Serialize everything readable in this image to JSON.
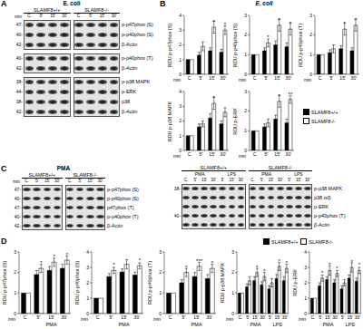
{
  "panel_titles": {
    "B": "E. coli"
  },
  "panel_labels": [
    "A",
    "B",
    "C",
    "D"
  ],
  "blots": [
    {
      "panel": "A",
      "title": "E. coli",
      "x_label": "min",
      "groups": [
        {
          "label": "SLAMF8+/+",
          "conditions": [
            {
              "lanes": [
                "C.",
                "5'",
                "15'",
                "30'"
              ]
            }
          ]
        },
        {
          "label": "SLAMF8-/-",
          "conditions": [
            {
              "lanes": [
                "C.",
                "5'",
                "15'",
                "30'"
              ]
            }
          ]
        }
      ],
      "boxes": [
        [
          {
            "mw": "47-",
            "name": "p-p47phox (S)"
          },
          {
            "mw": "40-",
            "name": "p-p40phox (S)"
          },
          {
            "mw": "42-",
            "name": "β-Actin"
          }
        ],
        [
          {
            "mw": "40-",
            "name": "p-p40phox (T)"
          },
          {
            "mw": "42-",
            "name": "β-Actin"
          }
        ],
        [
          {
            "mw": "38-",
            "name": "p-p38 MAPK"
          },
          {
            "mw": "44-",
            "name": "p-ERK"
          },
          {
            "mw": "38-",
            "name": "p38"
          },
          {
            "mw": "42-",
            "name": "β-Actin"
          }
        ]
      ]
    },
    {
      "panel": "C",
      "title": "PMA",
      "x_label": "min",
      "groups": [
        {
          "label": "SLAMF8+/+",
          "conditions": [
            {
              "lanes": [
                "C.",
                "5'",
                "15'",
                "30'"
              ]
            }
          ]
        },
        {
          "label": "SLAMF8-/-",
          "conditions": [
            {
              "lanes": [
                "C.",
                "5'",
                "15'",
                "30'"
              ]
            }
          ]
        }
      ],
      "boxes": [
        [
          {
            "mw": "47-",
            "name": "p-p47phox (S)"
          },
          {
            "mw": "40-",
            "name": "p-p40phox (S)"
          },
          {
            "mw": "47-",
            "name": "p47phox (T)"
          },
          {
            "mw": "40-",
            "name": "p-p40phox (T)"
          },
          {
            "mw": "42-",
            "name": "β-Actin"
          }
        ]
      ]
    },
    {
      "panel": "C",
      "groups": [
        {
          "label": "SLAMF8+/+",
          "conditions": [
            {
              "label": "PMA",
              "lanes": [
                "C.",
                "5'",
                "15'",
                "30'"
              ]
            },
            {
              "label": "LPS",
              "lanes": [
                "5'",
                "15'",
                "30'"
              ]
            }
          ]
        },
        {
          "label": "SLAMF8-/-",
          "conditions": [
            {
              "label": "PMA",
              "lanes": [
                "C.",
                "5'",
                "15'",
                "30'"
              ]
            },
            {
              "label": "LPS",
              "lanes": [
                "5'",
                "15'",
                "30'"
              ]
            }
          ]
        }
      ],
      "boxes": [
        [
          {
            "mw": "38-",
            "name": "p-p38 MAPK"
          },
          {
            "name": "p38 α/β"
          },
          {
            "name": "p-ERK"
          },
          {
            "mw": "40-",
            "name": "p-p40phox (T)"
          },
          {
            "name": "β-Actin"
          }
        ]
      ]
    }
  ],
  "chart_data": [
    {
      "panel": "B",
      "type": "bar",
      "y_label": "RDU p-p47phox (S)",
      "x_label": "min",
      "categories": [
        "C.",
        "5'",
        "15'",
        "30'"
      ],
      "series": [
        {
          "name": "SLAMF8+/+",
          "color": "#000000",
          "values": [
            1,
            1.3,
            1.6,
            1.5
          ],
          "errors": [
            0,
            0.2,
            0.2,
            0.2
          ]
        },
        {
          "name": "SLAMF8-/-",
          "color": "#ffffff",
          "values": [
            1,
            1.9,
            3.2,
            3.0
          ],
          "errors": [
            0,
            0.3,
            0.4,
            0.3
          ]
        }
      ],
      "ylim": [
        0,
        4
      ],
      "yticks": [
        0,
        1,
        2,
        3,
        4
      ],
      "annotations": [
        {
          "index": 2,
          "text": "*"
        },
        {
          "index": 3,
          "text": "*"
        }
      ]
    },
    {
      "panel": "B",
      "type": "bar",
      "y_label": "RDU p-p40phox (S)",
      "x_label": "min",
      "categories": [
        "C.",
        "5'",
        "15'",
        "30'"
      ],
      "series": [
        {
          "name": "SLAMF8+/+",
          "color": "#000000",
          "values": [
            1,
            1.2,
            1.5,
            1.4
          ],
          "errors": [
            0,
            0.15,
            0.2,
            0.2
          ]
        },
        {
          "name": "SLAMF8-/-",
          "color": "#ffffff",
          "values": [
            1,
            1.6,
            2.5,
            2.3
          ],
          "errors": [
            0,
            0.2,
            0.3,
            0.3
          ]
        }
      ],
      "ylim": [
        0,
        3
      ],
      "yticks": [
        0,
        1,
        2,
        3
      ],
      "annotations": [
        {
          "index": 1,
          "text": "*"
        },
        {
          "index": 2,
          "text": "*"
        },
        {
          "index": 3,
          "text": "*"
        }
      ]
    },
    {
      "panel": "B",
      "type": "bar",
      "y_label": "RDU p-p40phox (T)",
      "x_label": "min",
      "categories": [
        "C.",
        "5'",
        "15'",
        "30'"
      ],
      "series": [
        {
          "name": "SLAMF8+/+",
          "color": "#000000",
          "values": [
            1,
            1.1,
            1.3,
            1.2
          ],
          "errors": [
            0,
            0.15,
            0.15,
            0.15
          ]
        },
        {
          "name": "SLAMF8-/-",
          "color": "#ffffff",
          "values": [
            1,
            1.3,
            2.3,
            2.5
          ],
          "errors": [
            0,
            0.2,
            0.3,
            0.3
          ]
        }
      ],
      "ylim": [
        0,
        3
      ],
      "yticks": [
        0,
        1,
        2,
        3
      ],
      "annotations": [
        {
          "index": 2,
          "text": "*"
        },
        {
          "index": 3,
          "text": "*"
        }
      ]
    },
    {
      "panel": "B",
      "type": "bar",
      "y_label": "RDU p-p38 MAPK",
      "x_label": "min",
      "categories": [
        "C.",
        "5'",
        "15'",
        "30'"
      ],
      "series": [
        {
          "name": "SLAMF8+/+",
          "color": "#000000",
          "values": [
            1,
            1.6,
            2.2,
            1.8
          ],
          "errors": [
            0,
            0.2,
            0.3,
            0.2
          ]
        },
        {
          "name": "SLAMF8-/-",
          "color": "#ffffff",
          "values": [
            1,
            1.8,
            3.2,
            2.6
          ],
          "errors": [
            0,
            0.2,
            0.4,
            0.3
          ]
        }
      ],
      "ylim": [
        0,
        4
      ],
      "yticks": [
        0,
        1,
        2,
        3,
        4
      ],
      "annotations": [
        {
          "index": 2,
          "text": "*"
        }
      ]
    },
    {
      "panel": "B",
      "type": "bar",
      "y_label": "RDU p-ERK",
      "x_label": "min",
      "categories": [
        "C.",
        "5'",
        "15'",
        "30'"
      ],
      "series": [
        {
          "name": "SLAMF8+/+",
          "color": "#000000",
          "values": [
            1,
            1.2,
            1.6,
            1.4
          ],
          "errors": [
            0,
            0.15,
            0.2,
            0.2
          ]
        },
        {
          "name": "SLAMF8-/-",
          "color": "#ffffff",
          "values": [
            1,
            1.4,
            2.5,
            2.6
          ],
          "errors": [
            0,
            0.2,
            0.3,
            0.2
          ]
        }
      ],
      "ylim": [
        0,
        3
      ],
      "yticks": [
        0,
        1,
        2,
        3
      ],
      "annotations": [
        {
          "index": 2,
          "text": "*"
        },
        {
          "index": 3,
          "text": "**"
        }
      ]
    },
    {
      "panel": "D",
      "type": "bar",
      "y_label": "RDU p-p47phox (S)",
      "x_label": "min",
      "categories": [
        "C.",
        "5'",
        "15'",
        "30'"
      ],
      "groups": [
        {
          "label": "PMA",
          "from": 1,
          "to": 3
        }
      ],
      "series": [
        {
          "name": "SLAMF8+/+",
          "color": "#000000",
          "values": [
            1,
            1.9,
            2.1,
            2.2
          ],
          "errors": [
            0,
            0.2,
            0.2,
            0.2
          ]
        },
        {
          "name": "SLAMF8-/-",
          "color": "#ffffff",
          "values": [
            1,
            2.2,
            2.5,
            2.6
          ],
          "errors": [
            0,
            0.2,
            0.2,
            0.2
          ]
        }
      ],
      "ylim": [
        0,
        3
      ],
      "yticks": [
        0,
        1,
        2,
        3
      ],
      "annotations": [
        {
          "index": 1,
          "text": "*"
        },
        {
          "index": 2,
          "text": "*"
        },
        {
          "index": 3,
          "text": "*"
        }
      ]
    },
    {
      "panel": "D",
      "type": "bar",
      "y_label": "RDU p-p40phox (S)",
      "x_label": "min",
      "categories": [
        "C.",
        "5'",
        "15'",
        "30'"
      ],
      "groups": [
        {
          "label": "PMA",
          "from": 1,
          "to": 3
        }
      ],
      "series": [
        {
          "name": "SLAMF8+/+",
          "color": "#000000",
          "values": [
            1,
            2.4,
            2.7,
            2.5
          ],
          "errors": [
            0,
            0.2,
            0.2,
            0.2
          ]
        },
        {
          "name": "SLAMF8-/-",
          "color": "#ffffff",
          "values": [
            1,
            2.8,
            3.2,
            3.1
          ],
          "errors": [
            0,
            0.2,
            0.3,
            0.2
          ]
        }
      ],
      "ylim": [
        0,
        4
      ],
      "yticks": [
        0,
        1,
        2,
        3,
        4
      ],
      "annotations": [
        {
          "index": 1,
          "text": "*"
        },
        {
          "index": 3,
          "text": "*"
        }
      ]
    },
    {
      "panel": "D",
      "type": "bar",
      "y_label": "RDU p-p40phox (T)",
      "x_label": "min",
      "categories": [
        "C.",
        "5'",
        "15'",
        "30'"
      ],
      "groups": [
        {
          "label": "PMA",
          "from": 1,
          "to": 3
        }
      ],
      "series": [
        {
          "name": "SLAMF8+/+",
          "color": "#000000",
          "values": [
            1,
            1.5,
            1.8,
            1.7
          ],
          "errors": [
            0,
            0.15,
            0.2,
            0.2
          ]
        },
        {
          "name": "SLAMF8-/-",
          "color": "#ffffff",
          "values": [
            1,
            2.0,
            2.3,
            2.2
          ],
          "errors": [
            0,
            0.2,
            0.2,
            0.2
          ]
        }
      ],
      "ylim": [
        0,
        3
      ],
      "yticks": [
        0,
        1,
        2,
        3
      ],
      "annotations": [
        {
          "index": 1,
          "text": "*"
        },
        {
          "index": 2,
          "text": "***"
        },
        {
          "index": 3,
          "text": "*"
        }
      ]
    },
    {
      "panel": "D",
      "type": "bar",
      "y_label": "RDU p-p38 MAPK",
      "x_label": "min",
      "categories": [
        "C.",
        "5'",
        "15'",
        "30'",
        "5'",
        "15'",
        "30'"
      ],
      "groups": [
        {
          "label": "PMA",
          "from": 1,
          "to": 3
        },
        {
          "label": "LPS",
          "from": 4,
          "to": 6
        }
      ],
      "series": [
        {
          "name": "SLAMF8+/+",
          "color": "#000000",
          "values": [
            1,
            1.3,
            1.6,
            1.4,
            1.2,
            1.7,
            1.6
          ],
          "errors": [
            0,
            0.15,
            0.2,
            0.15,
            0.15,
            0.2,
            0.2
          ]
        },
        {
          "name": "SLAMF8-/-",
          "color": "#ffffff",
          "values": [
            1,
            1.6,
            2.0,
            1.8,
            1.5,
            2.3,
            2.2
          ],
          "errors": [
            0,
            0.2,
            0.2,
            0.2,
            0.2,
            0.2,
            0.2
          ]
        }
      ],
      "ylim": [
        0,
        3
      ],
      "yticks": [
        0,
        1,
        2,
        3
      ],
      "annotations": [
        {
          "index": 2,
          "text": "*"
        },
        {
          "index": 3,
          "text": "*"
        },
        {
          "index": 5,
          "text": "*"
        },
        {
          "index": 6,
          "text": "*"
        }
      ]
    },
    {
      "panel": "D",
      "type": "bar",
      "y_label": "RDU p-ERK",
      "x_label": "min",
      "categories": [
        "C.",
        "5'",
        "15'",
        "30'",
        "5'",
        "15'",
        "30'"
      ],
      "groups": [
        {
          "label": "PMA",
          "from": 1,
          "to": 3
        },
        {
          "label": "LPS",
          "from": 4,
          "to": 6
        }
      ],
      "series": [
        {
          "name": "SLAMF8+/+",
          "color": "#000000",
          "values": [
            1,
            1.8,
            2.2,
            2.0,
            1.6,
            2.3,
            2.1
          ],
          "errors": [
            0,
            0.2,
            0.2,
            0.2,
            0.2,
            0.2,
            0.2
          ]
        },
        {
          "name": "SLAMF8-/-",
          "color": "#ffffff",
          "values": [
            1,
            2.3,
            2.8,
            2.6,
            2.0,
            3.0,
            2.8
          ],
          "errors": [
            0,
            0.2,
            0.3,
            0.2,
            0.2,
            0.3,
            0.2
          ]
        }
      ],
      "ylim": [
        0,
        4
      ],
      "yticks": [
        0,
        1,
        2,
        3,
        4
      ],
      "annotations": [
        {
          "index": 1,
          "text": "*"
        },
        {
          "index": 2,
          "text": "*"
        },
        {
          "index": 3,
          "text": "*"
        },
        {
          "index": 5,
          "text": "*"
        },
        {
          "index": 6,
          "text": "*"
        }
      ]
    }
  ]
}
